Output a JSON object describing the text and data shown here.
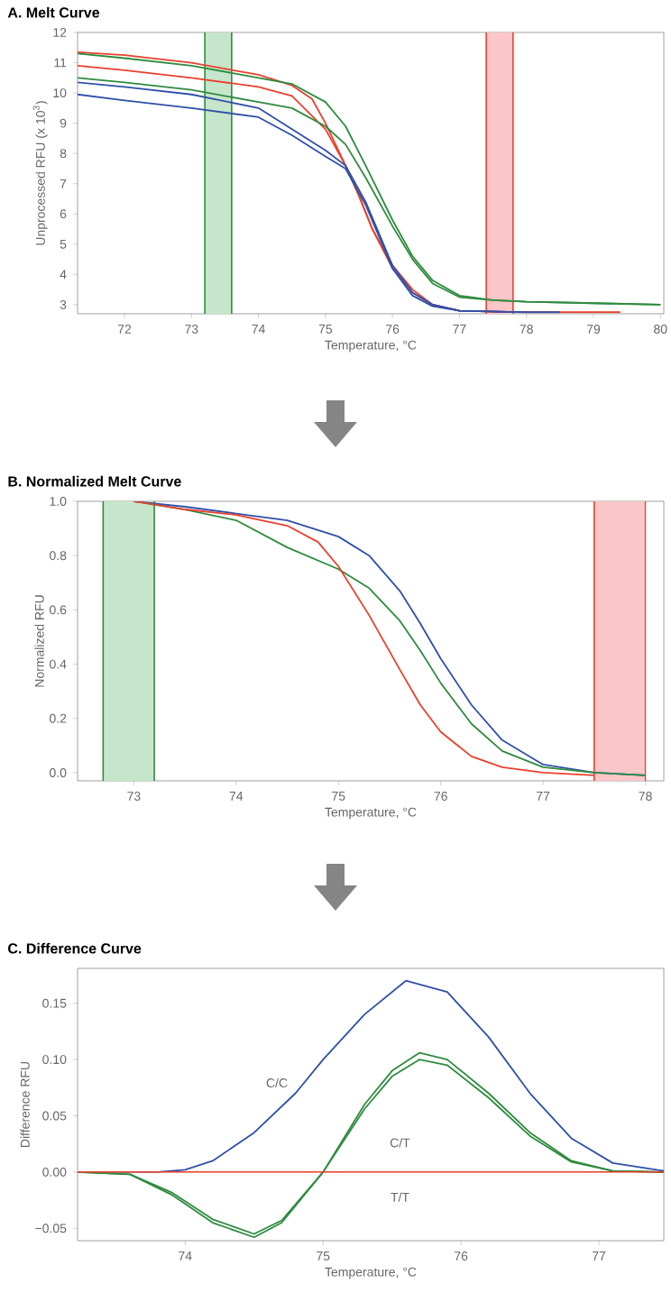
{
  "chart_data": [
    {
      "type": "line",
      "title": "A. Melt Curve",
      "xlabel": "Temperature, °C",
      "ylabel": "Unprocessed RFU (x 10$^{3}$)",
      "marker": "none",
      "xlim": [
        71.3,
        80.05
      ],
      "ylim": [
        2.7,
        12
      ],
      "xticks": [
        72,
        73,
        74,
        75,
        76,
        77,
        78,
        79,
        80
      ],
      "yticks": [
        3,
        4,
        5,
        6,
        7,
        8,
        9,
        10,
        11,
        12
      ],
      "bands": [
        {
          "axis": "x",
          "from": 73.2,
          "to": 73.6,
          "color": "#c6e6cb"
        },
        {
          "axis": "x",
          "from": 77.4,
          "to": 77.8,
          "color": "#fbc6c8"
        }
      ],
      "ref_lines": [
        {
          "axis": "x",
          "value": 73.2,
          "color": "#2e8b3e"
        },
        {
          "axis": "x",
          "value": 73.6,
          "color": "#2e8b3e"
        },
        {
          "axis": "x",
          "value": 77.4,
          "color": "#e8412c"
        },
        {
          "axis": "x",
          "value": 77.8,
          "color": "#e8412c"
        }
      ],
      "series": [
        {
          "color": "#e8412c",
          "x": [
            71.3,
            72,
            73,
            74,
            74.5,
            74.8,
            75,
            75.3,
            75.5,
            75.7,
            76,
            76.3,
            76.6,
            77,
            78,
            79.4
          ],
          "values": [
            11.35,
            11.25,
            11.0,
            10.6,
            10.25,
            9.8,
            9.0,
            7.6,
            6.6,
            5.5,
            4.3,
            3.5,
            3.0,
            2.8,
            2.75,
            2.75
          ]
        },
        {
          "color": "#e8412c",
          "x": [
            71.3,
            72,
            73,
            74,
            74.5,
            75,
            75.3,
            75.5,
            75.7,
            76,
            76.3,
            76.6,
            77,
            78,
            79.4
          ],
          "values": [
            10.9,
            10.75,
            10.5,
            10.2,
            9.9,
            8.8,
            7.6,
            6.6,
            5.5,
            4.2,
            3.4,
            3.0,
            2.8,
            2.75,
            2.75
          ]
        },
        {
          "color": "#2e8b3e",
          "x": [
            71.3,
            72,
            73,
            74,
            74.5,
            75,
            75.3,
            75.6,
            76,
            76.3,
            76.6,
            77,
            77.5,
            78,
            79,
            80
          ],
          "values": [
            11.3,
            11.15,
            10.9,
            10.5,
            10.3,
            9.7,
            8.9,
            7.6,
            5.8,
            4.6,
            3.8,
            3.3,
            3.15,
            3.1,
            3.05,
            3.0
          ]
        },
        {
          "color": "#2e8b3e",
          "x": [
            71.3,
            72,
            73,
            74,
            74.5,
            75,
            75.3,
            75.6,
            76,
            76.3,
            76.6,
            77,
            77.5,
            78,
            79,
            80
          ],
          "values": [
            10.5,
            10.35,
            10.1,
            9.7,
            9.5,
            8.9,
            8.3,
            7.2,
            5.6,
            4.5,
            3.7,
            3.25,
            3.15,
            3.1,
            3.05,
            3.0
          ]
        },
        {
          "color": "#3050a8",
          "x": [
            71.3,
            72,
            73,
            74,
            74.5,
            75,
            75.3,
            75.6,
            76,
            76.3,
            76.6,
            77,
            78,
            78.5
          ],
          "values": [
            10.35,
            10.2,
            9.95,
            9.5,
            8.8,
            8.1,
            7.6,
            6.4,
            4.3,
            3.4,
            3.0,
            2.8,
            2.75,
            2.75
          ]
        },
        {
          "color": "#3050a8",
          "x": [
            71.3,
            72,
            73,
            74,
            74.5,
            75,
            75.3,
            75.6,
            76,
            76.3,
            76.6,
            77,
            78,
            78.5
          ],
          "values": [
            9.95,
            9.75,
            9.5,
            9.2,
            8.6,
            7.9,
            7.5,
            6.3,
            4.2,
            3.3,
            2.95,
            2.8,
            2.75,
            2.75
          ]
        }
      ]
    },
    {
      "type": "line",
      "title": "B. Normalized Melt Curve",
      "xlabel": "Temperature, °C",
      "ylabel": "Normalized RFU",
      "marker": "none",
      "xlim": [
        72.45,
        78.18
      ],
      "ylim": [
        -0.03,
        1.0
      ],
      "xticks": [
        73,
        74,
        75,
        76,
        77,
        78
      ],
      "yticks": [
        {
          "value": 0,
          "label": "0.0"
        },
        0.2,
        0.4,
        0.6,
        0.8,
        {
          "value": 1,
          "label": "1.0"
        }
      ],
      "bands": [
        {
          "axis": "x",
          "from": 72.7,
          "to": 73.2,
          "color": "#c6e6cb"
        },
        {
          "axis": "x",
          "from": 77.5,
          "to": 78.0,
          "color": "#fbc6c8"
        }
      ],
      "ref_lines": [
        {
          "axis": "x",
          "value": 72.7,
          "color": "#2e8b3e"
        },
        {
          "axis": "x",
          "value": 73.2,
          "color": "#2e8b3e"
        },
        {
          "axis": "x",
          "value": 77.5,
          "color": "#e8412c"
        },
        {
          "axis": "x",
          "value": 78.0,
          "color": "#e8412c"
        }
      ],
      "series": [
        {
          "color": "#3050a8",
          "x": [
            73,
            73.5,
            74,
            74.5,
            75,
            75.3,
            75.6,
            75.8,
            76,
            76.3,
            76.6,
            77,
            77.5,
            78
          ],
          "values": [
            1.0,
            0.98,
            0.955,
            0.93,
            0.87,
            0.8,
            0.67,
            0.55,
            0.42,
            0.25,
            0.12,
            0.03,
            0.0,
            -0.01
          ]
        },
        {
          "color": "#2e8b3e",
          "x": [
            73,
            73.5,
            74,
            74.5,
            75,
            75.3,
            75.6,
            75.8,
            76,
            76.3,
            76.6,
            77,
            77.5,
            78
          ],
          "values": [
            1.0,
            0.97,
            0.93,
            0.83,
            0.75,
            0.68,
            0.56,
            0.45,
            0.33,
            0.18,
            0.08,
            0.02,
            0.0,
            -0.01
          ]
        },
        {
          "color": "#e8412c",
          "x": [
            73,
            73.5,
            74,
            74.5,
            74.8,
            75,
            75.3,
            75.6,
            75.8,
            76,
            76.3,
            76.6,
            77,
            77.5
          ],
          "values": [
            1.0,
            0.97,
            0.95,
            0.91,
            0.85,
            0.76,
            0.58,
            0.38,
            0.25,
            0.15,
            0.06,
            0.02,
            0.0,
            -0.01
          ]
        }
      ]
    },
    {
      "type": "line",
      "title": "C. Difference Curve",
      "xlabel": "Temperature, °C",
      "ylabel": "Difference RFU",
      "marker": "none",
      "xlim": [
        73.22,
        77.47
      ],
      "ylim": [
        -0.061,
        0.181
      ],
      "xticks": [
        74,
        75,
        76,
        77
      ],
      "yticks": [
        {
          "value": -0.05,
          "label": "−0.05"
        },
        {
          "value": 0,
          "label": "0.00"
        },
        0.05,
        {
          "value": 0.1,
          "label": "0.10"
        },
        0.15
      ],
      "annotations": [
        "C/C",
        "C/T",
        "T/T"
      ],
      "series": [
        {
          "color": "#3050a8",
          "x": [
            73.22,
            73.8,
            74,
            74.2,
            74.5,
            74.8,
            75,
            75.3,
            75.6,
            75.9,
            76.2,
            76.5,
            76.8,
            77.1,
            77.47
          ],
          "values": [
            0,
            0,
            0.002,
            0.01,
            0.035,
            0.07,
            0.1,
            0.14,
            0.17,
            0.16,
            0.12,
            0.07,
            0.03,
            0.008,
            0.001
          ]
        },
        {
          "color": "#2e8b3e",
          "x": [
            73.22,
            73.6,
            73.9,
            74.2,
            74.5,
            74.7,
            75,
            75.3,
            75.5,
            75.7,
            75.9,
            76.2,
            76.5,
            76.8,
            77.1,
            77.47
          ],
          "values": [
            0,
            -0.002,
            -0.02,
            -0.045,
            -0.058,
            -0.045,
            0.0,
            0.06,
            0.09,
            0.106,
            0.1,
            0.07,
            0.035,
            0.01,
            0.001,
            0
          ]
        },
        {
          "color": "#2e8b3e",
          "x": [
            73.22,
            73.6,
            73.9,
            74.2,
            74.5,
            74.7,
            75,
            75.3,
            75.5,
            75.7,
            75.9,
            76.2,
            76.5,
            76.8,
            77.1,
            77.47
          ],
          "values": [
            0,
            -0.002,
            -0.018,
            -0.042,
            -0.055,
            -0.043,
            0.0,
            0.056,
            0.085,
            0.1,
            0.095,
            0.066,
            0.032,
            0.009,
            0.001,
            0
          ]
        },
        {
          "color": "#e8412c",
          "x": [
            73.22,
            77.47
          ],
          "values": [
            0,
            0
          ]
        }
      ]
    }
  ]
}
